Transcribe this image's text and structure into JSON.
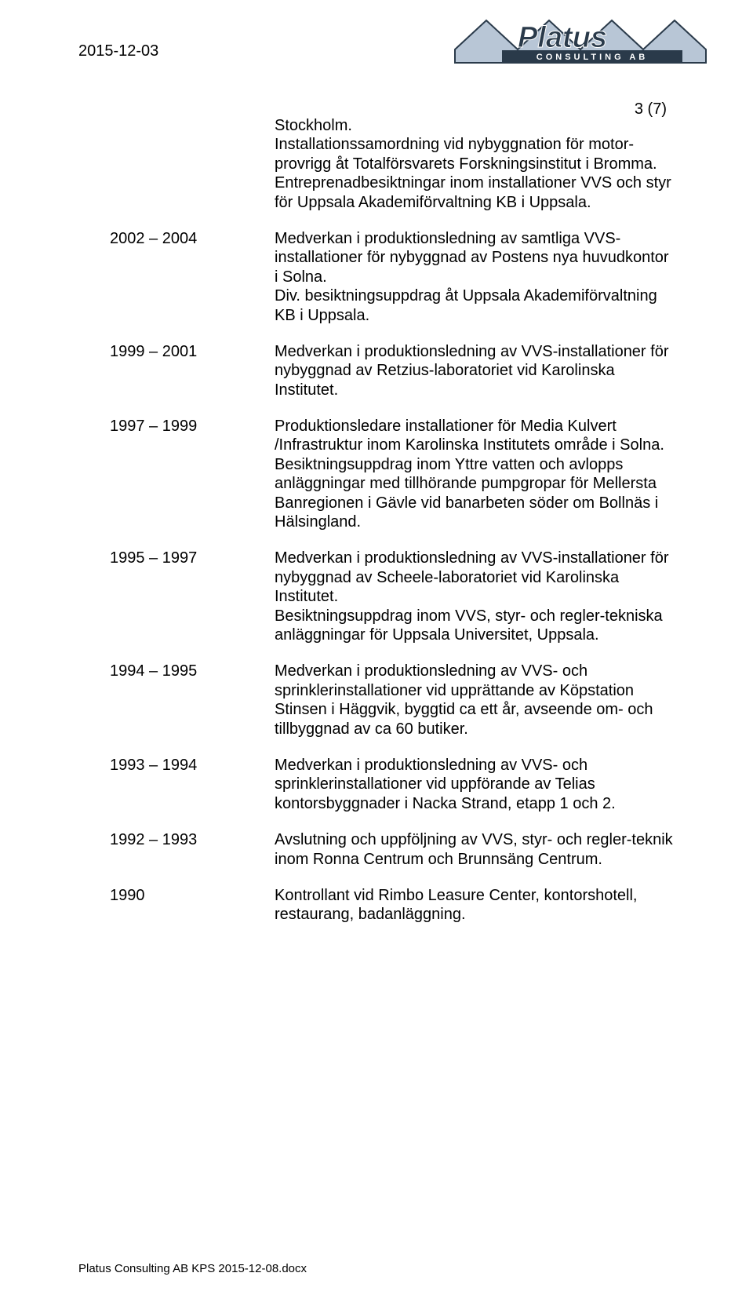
{
  "header": {
    "date": "2015-12-03",
    "page_number": "3 (7)"
  },
  "logo": {
    "text_main": "Platus",
    "text_sub": "CONSULTING AB",
    "colors": {
      "fill": "#b8c6d6",
      "stroke": "#2a3a4a",
      "accent": "#7a8fa6"
    }
  },
  "intro": {
    "text": "Stockholm.\nInstallationssamordning vid nybyggnation för motor-provrigg åt Totalförsvarets Forskningsinstitut i Bromma.\nEntreprenadbesiktningar inom installationer VVS och styr för Uppsala Akademiförvaltning KB i Uppsala."
  },
  "entries": [
    {
      "year": "2002 – 2004",
      "text": "Medverkan i produktionsledning av samtliga VVS-installationer för nybyggnad av Postens nya huvudkontor i Solna.\nDiv. besiktningsuppdrag åt Uppsala Akademiförvaltning KB i Uppsala."
    },
    {
      "year": "1999 – 2001",
      "text": "Medverkan i produktionsledning av VVS-installationer för nybyggnad av Retzius-laboratoriet vid Karolinska Institutet."
    },
    {
      "year": "1997 – 1999",
      "text": "Produktionsledare installationer för Media Kulvert /Infrastruktur inom Karolinska Institutets område i Solna.\nBesiktningsuppdrag inom Yttre vatten och avlopps anläggningar med tillhörande pumpgropar för Mellersta Banregionen i Gävle vid banarbeten söder om Bollnäs i Hälsingland."
    },
    {
      "year": "1995 – 1997",
      "text": "Medverkan i produktionsledning av VVS-installationer för nybyggnad av Scheele-laboratoriet vid Karolinska Institutet.\nBesiktningsuppdrag inom VVS, styr- och regler-tekniska anläggningar för Uppsala Universitet, Uppsala."
    },
    {
      "year": "1994 – 1995",
      "text": "Medverkan i produktionsledning av VVS- och sprinklerinstallationer vid upprättande av Köpstation Stinsen i Häggvik, byggtid ca ett år, avseende om- och tillbyggnad av ca 60 butiker."
    },
    {
      "year": "1993 – 1994",
      "text": "Medverkan i produktionsledning av VVS- och sprinklerinstallationer vid uppförande av Telias kontorsbyggnader i Nacka Strand, etapp 1 och 2."
    },
    {
      "year": "1992 – 1993",
      "text": "Avslutning och uppföljning av VVS, styr- och regler-teknik inom Ronna Centrum och Brunnsäng Centrum."
    },
    {
      "year": "1990",
      "text": "Kontrollant vid Rimbo Leasure Center, kontorshotell, restaurang, badanläggning."
    }
  ],
  "footer": {
    "text": "Platus Consulting AB KPS 2015-12-08.docx"
  }
}
